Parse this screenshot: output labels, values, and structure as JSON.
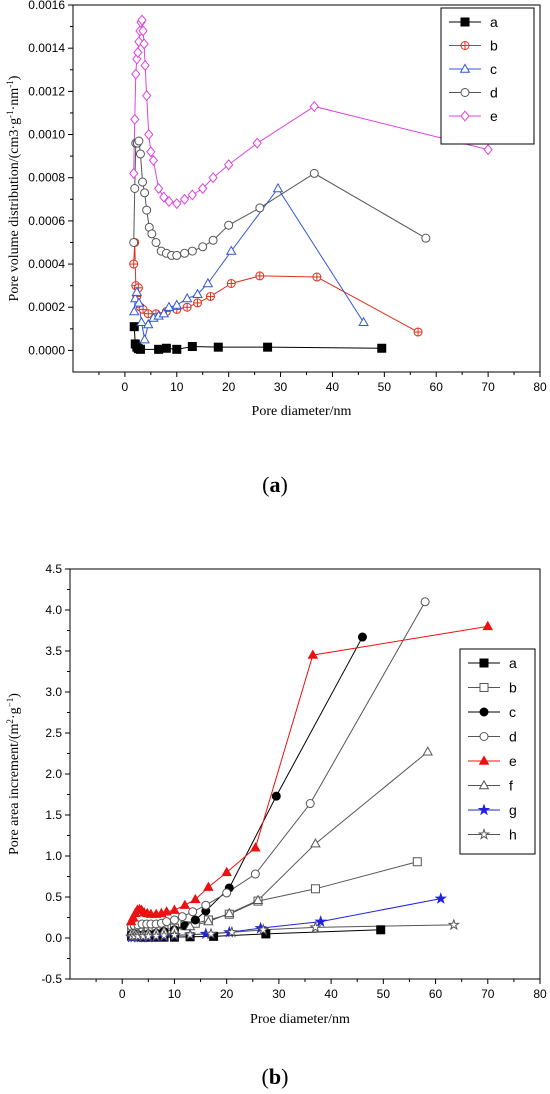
{
  "chart_data": [
    {
      "type": "line",
      "panel_label": "a",
      "xlabel": "Pore diameter/nm",
      "ylabel": "Pore volume distribution/(cm3·g-1·nm-1)",
      "ylabel_main": "Pore volume distribution/(cm3·g",
      "ylabel_sup1": "-1",
      "ylabel_mid": "·nm",
      "ylabel_sup2": "-1",
      "ylabel_end": ")",
      "xlim": [
        -10,
        80
      ],
      "ylim": [
        -0.0001,
        0.0016
      ],
      "xticks": [
        0,
        10,
        20,
        30,
        40,
        50,
        60,
        70,
        80
      ],
      "xtick_labels": [
        "0",
        "10",
        "20",
        "30",
        "40",
        "50",
        "60",
        "70",
        "80"
      ],
      "yticks": [
        0.0,
        0.0002,
        0.0004,
        0.0006,
        0.0008,
        0.001,
        0.0012,
        0.0014,
        0.0016
      ],
      "ytick_labels": [
        "0.0000",
        "0.0002",
        "0.0004",
        "0.0006",
        "0.0008",
        "0.0010",
        "0.0012",
        "0.0014",
        "0.0016"
      ],
      "legend_position": "top-right",
      "series": [
        {
          "name": "a",
          "color": "#000000",
          "marker": "square-filled",
          "x": [
            1.8,
            2.0,
            2.3,
            2.6,
            3.0,
            6.5,
            8.0,
            10.0,
            13.0,
            18.0,
            27.5,
            49.5
          ],
          "y": [
            0.00011,
            3e-05,
            1.5e-05,
            8e-06,
            5e-06,
            5e-06,
            1e-05,
            5e-06,
            1.8e-05,
            1.5e-05,
            1.5e-05,
            1e-05
          ]
        },
        {
          "name": "b",
          "color": "#e0301e",
          "marker": "circle-cross",
          "x": [
            1.7,
            1.9,
            2.1,
            2.3,
            2.6,
            3.0,
            3.5,
            4.5,
            6.0,
            8.0,
            10.0,
            12.0,
            14.0,
            16.5,
            20.5,
            26.0,
            37.0,
            56.5
          ],
          "y": [
            0.0004,
            0.0005,
            0.0003,
            0.00025,
            0.00029,
            0.0002,
            0.00019,
            0.00017,
            0.00017,
            0.00018,
            0.00019,
            0.0002,
            0.00022,
            0.00025,
            0.00031,
            0.000345,
            0.00034,
            8.5e-05
          ]
        },
        {
          "name": "c",
          "color": "#3355dd",
          "marker": "triangle-open",
          "x": [
            1.8,
            2.0,
            2.3,
            2.7,
            3.2,
            3.8,
            4.5,
            5.5,
            6.5,
            7.5,
            8.5,
            10.0,
            12.0,
            14.0,
            16.0,
            20.5,
            29.5,
            46.0
          ],
          "y": [
            0.00018,
            0.00024,
            0.00027,
            0.00022,
            0.00013,
            5e-05,
            0.00012,
            0.00015,
            0.00016,
            0.00017,
            0.0002,
            0.00021,
            0.00024,
            0.00026,
            0.00031,
            0.00046,
            0.00075,
            0.00013
          ]
        },
        {
          "name": "d",
          "color": "#555555",
          "marker": "circle-open",
          "x": [
            1.7,
            1.9,
            2.1,
            2.4,
            2.7,
            3.0,
            3.4,
            3.8,
            4.2,
            4.7,
            5.2,
            6.0,
            7.0,
            8.0,
            9.0,
            10.0,
            11.5,
            13.0,
            15.0,
            17.0,
            20.0,
            26.0,
            36.5,
            58.0
          ],
          "y": [
            0.0005,
            0.00075,
            0.00096,
            0.00096,
            0.00097,
            0.00091,
            0.00078,
            0.00073,
            0.00065,
            0.00057,
            0.00054,
            0.0005,
            0.00046,
            0.00045,
            0.00044,
            0.00044,
            0.00045,
            0.00046,
            0.00048,
            0.00051,
            0.00058,
            0.00066,
            0.00082,
            0.00052
          ]
        },
        {
          "name": "e",
          "color": "#dd44dd",
          "marker": "diamond-open",
          "x": [
            1.7,
            1.9,
            2.1,
            2.3,
            2.5,
            2.7,
            2.9,
            3.1,
            3.3,
            3.5,
            3.7,
            3.9,
            4.2,
            4.6,
            5.0,
            5.5,
            6.5,
            7.5,
            8.5,
            10.0,
            11.5,
            13.0,
            15.0,
            17.0,
            20.0,
            25.5,
            36.5,
            70.0
          ],
          "y": [
            0.00082,
            0.00107,
            0.00128,
            0.00135,
            0.00138,
            0.00143,
            0.00148,
            0.00152,
            0.00153,
            0.00148,
            0.00142,
            0.00132,
            0.00118,
            0.001,
            0.00092,
            0.00088,
            0.00075,
            0.00071,
            0.00069,
            0.00068,
            0.0007,
            0.00072,
            0.00075,
            0.0008,
            0.00086,
            0.00096,
            0.00113,
            0.00093
          ]
        }
      ]
    },
    {
      "type": "line",
      "panel_label": "b",
      "xlabel": "Proe diameter/nm",
      "ylabel": "Pore area increment/(m2·g−1)",
      "ylabel_main": "Pore area increment/(m",
      "ylabel_sup1": "2",
      "ylabel_mid": "·g",
      "ylabel_sup2": "−1",
      "ylabel_end": ")",
      "xlim": [
        -10,
        80
      ],
      "ylim": [
        -0.5,
        4.5
      ],
      "xticks": [
        0,
        10,
        20,
        30,
        40,
        50,
        60,
        70,
        80
      ],
      "xtick_labels": [
        "0",
        "10",
        "20",
        "30",
        "40",
        "50",
        "60",
        "70",
        "80"
      ],
      "yticks": [
        -0.5,
        0.0,
        0.5,
        1.0,
        1.5,
        2.0,
        2.5,
        3.0,
        3.5,
        4.0,
        4.5
      ],
      "ytick_labels": [
        "-0.5",
        "0.0",
        "0.5",
        "1.0",
        "1.5",
        "2.0",
        "2.5",
        "3.0",
        "3.5",
        "4.0",
        "4.5"
      ],
      "legend_position": "right",
      "series": [
        {
          "name": "a",
          "color": "#000000",
          "marker": "square-filled",
          "x": [
            1.8,
            2.3,
            3.0,
            4.0,
            5.0,
            6.5,
            8.0,
            10.0,
            13.0,
            17.5,
            27.5,
            49.5
          ],
          "y": [
            0.02,
            0.02,
            0.015,
            0.01,
            0.01,
            0.01,
            0.01,
            0.01,
            0.015,
            0.02,
            0.05,
            0.1
          ]
        },
        {
          "name": "b",
          "color": "#555555",
          "marker": "square-open",
          "x": [
            1.8,
            2.3,
            3.0,
            4.0,
            5.0,
            6.5,
            8.0,
            10.0,
            12.0,
            14.0,
            16.5,
            20.5,
            26.0,
            37.0,
            56.5
          ],
          "y": [
            0.08,
            0.08,
            0.07,
            0.07,
            0.08,
            0.09,
            0.1,
            0.12,
            0.15,
            0.18,
            0.22,
            0.29,
            0.45,
            0.6,
            0.93
          ]
        },
        {
          "name": "c",
          "color": "#000000",
          "marker": "circle-filled",
          "x": [
            1.8,
            2.3,
            3.0,
            4.0,
            5.0,
            6.5,
            8.0,
            10.0,
            12.0,
            14.0,
            16.0,
            20.5,
            29.5,
            46.0
          ],
          "y": [
            0.05,
            0.05,
            0.04,
            0.04,
            0.05,
            0.06,
            0.08,
            0.1,
            0.15,
            0.22,
            0.33,
            0.61,
            1.73,
            3.67
          ]
        },
        {
          "name": "d",
          "color": "#555555",
          "marker": "circle-open",
          "x": [
            1.8,
            2.3,
            3.0,
            3.8,
            4.7,
            5.5,
            6.5,
            7.5,
            8.5,
            10.0,
            11.5,
            13.5,
            16.0,
            20.0,
            25.5,
            36.0,
            58.0
          ],
          "y": [
            0.14,
            0.15,
            0.16,
            0.17,
            0.17,
            0.17,
            0.17,
            0.18,
            0.2,
            0.22,
            0.26,
            0.32,
            0.4,
            0.55,
            0.78,
            1.64,
            4.1
          ]
        },
        {
          "name": "e",
          "color": "#ee1111",
          "marker": "triangle-filled",
          "x": [
            1.7,
            2.1,
            2.5,
            2.9,
            3.3,
            3.7,
            4.2,
            4.8,
            5.5,
            6.5,
            7.5,
            8.5,
            10.0,
            12.0,
            14.0,
            16.5,
            20.0,
            25.5,
            36.5,
            70.0
          ],
          "y": [
            0.2,
            0.25,
            0.3,
            0.34,
            0.35,
            0.34,
            0.31,
            0.3,
            0.29,
            0.29,
            0.3,
            0.32,
            0.34,
            0.4,
            0.47,
            0.62,
            0.8,
            1.1,
            3.45,
            3.8
          ]
        },
        {
          "name": "f",
          "color": "#555555",
          "marker": "triangle-open",
          "x": [
            1.8,
            2.3,
            3.0,
            4.0,
            5.0,
            6.5,
            8.0,
            10.0,
            13.0,
            16.5,
            20.5,
            26.0,
            37.0,
            58.5
          ],
          "y": [
            0.06,
            0.06,
            0.05,
            0.05,
            0.06,
            0.07,
            0.08,
            0.1,
            0.14,
            0.2,
            0.3,
            0.46,
            1.15,
            2.27
          ]
        },
        {
          "name": "g",
          "color": "#2222dd",
          "marker": "star-filled",
          "x": [
            1.8,
            2.3,
            3.0,
            4.0,
            5.0,
            6.5,
            8.0,
            10.0,
            13.0,
            16.0,
            20.5,
            26.5,
            38.0,
            61.0
          ],
          "y": [
            0.01,
            0.01,
            0.01,
            0.01,
            0.01,
            0.015,
            0.02,
            0.03,
            0.04,
            0.05,
            0.07,
            0.12,
            0.2,
            0.48
          ]
        },
        {
          "name": "h",
          "color": "#555555",
          "marker": "star-open",
          "x": [
            1.8,
            2.3,
            3.0,
            4.0,
            5.0,
            6.5,
            8.0,
            10.0,
            13.0,
            17.0,
            21.0,
            27.0,
            37.0,
            63.5
          ],
          "y": [
            0.02,
            0.02,
            0.02,
            0.02,
            0.02,
            0.025,
            0.03,
            0.035,
            0.04,
            0.05,
            0.07,
            0.1,
            0.13,
            0.16
          ]
        }
      ]
    }
  ]
}
